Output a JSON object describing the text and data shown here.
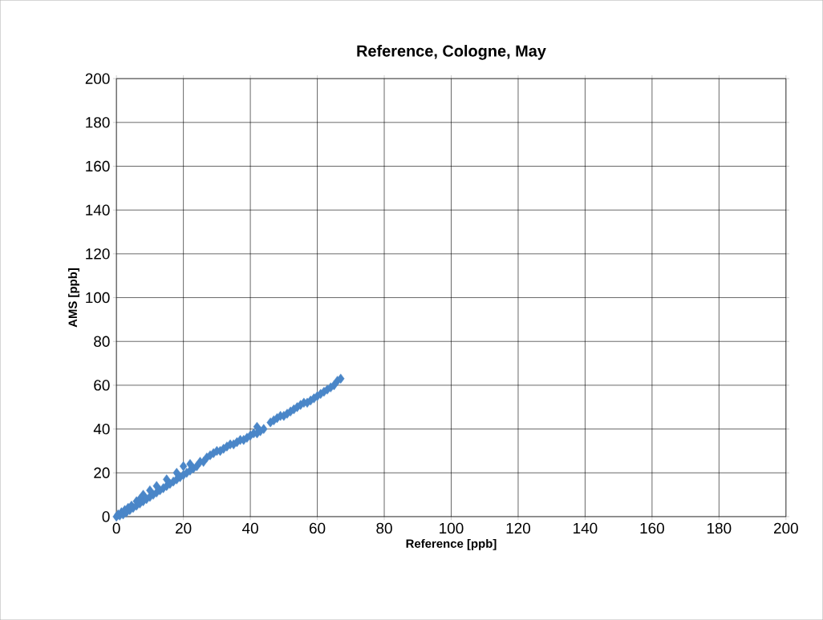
{
  "chart_data": {
    "type": "scatter",
    "title": "Reference, Cologne, May",
    "xlabel": "Reference [ppb]",
    "ylabel": "AMS  [ppb]",
    "x": [
      0,
      0.5,
      1,
      1.5,
      2,
      2.5,
      3,
      3.5,
      4,
      4.5,
      5,
      6,
      6,
      7,
      7,
      8,
      8,
      9,
      10,
      10,
      11,
      12,
      12,
      13,
      14,
      15,
      15,
      16,
      17,
      18,
      18,
      19,
      20,
      20,
      21,
      22,
      22,
      23,
      24,
      25,
      26,
      27,
      28,
      29,
      30,
      31,
      32,
      33,
      34,
      35,
      36,
      37,
      38,
      39,
      40,
      41,
      42,
      42,
      43,
      44,
      46,
      47,
      48,
      49,
      50,
      51,
      52,
      53,
      54,
      55,
      56,
      57,
      58,
      59,
      60,
      61,
      62,
      63,
      64,
      65,
      66,
      67
    ],
    "values": [
      0,
      1,
      0.5,
      2,
      1,
      3,
      2,
      4,
      3,
      5,
      4,
      5,
      7,
      6,
      8,
      7,
      10,
      8,
      9,
      12,
      10,
      11,
      14,
      12,
      13,
      14,
      17,
      15,
      16,
      17,
      20,
      18,
      19,
      23,
      20,
      21,
      24,
      22,
      23,
      25,
      25,
      27,
      28,
      29,
      30,
      30,
      31,
      32,
      33,
      33,
      34,
      35,
      35,
      36,
      37,
      38,
      38,
      41,
      39,
      40,
      43,
      44,
      45,
      46,
      46,
      47,
      48,
      49,
      50,
      51,
      52,
      52,
      53,
      54,
      55,
      56,
      57,
      58,
      59,
      60,
      62,
      63
    ],
    "color": "#4a86c8",
    "marker": "diamond",
    "xlim": [
      0,
      200
    ],
    "ylim": [
      0,
      200
    ],
    "xticks": [
      0,
      20,
      40,
      60,
      80,
      100,
      120,
      140,
      160,
      180,
      200
    ],
    "yticks": [
      0,
      20,
      40,
      60,
      80,
      100,
      120,
      140,
      160,
      180,
      200
    ],
    "grid": true
  }
}
